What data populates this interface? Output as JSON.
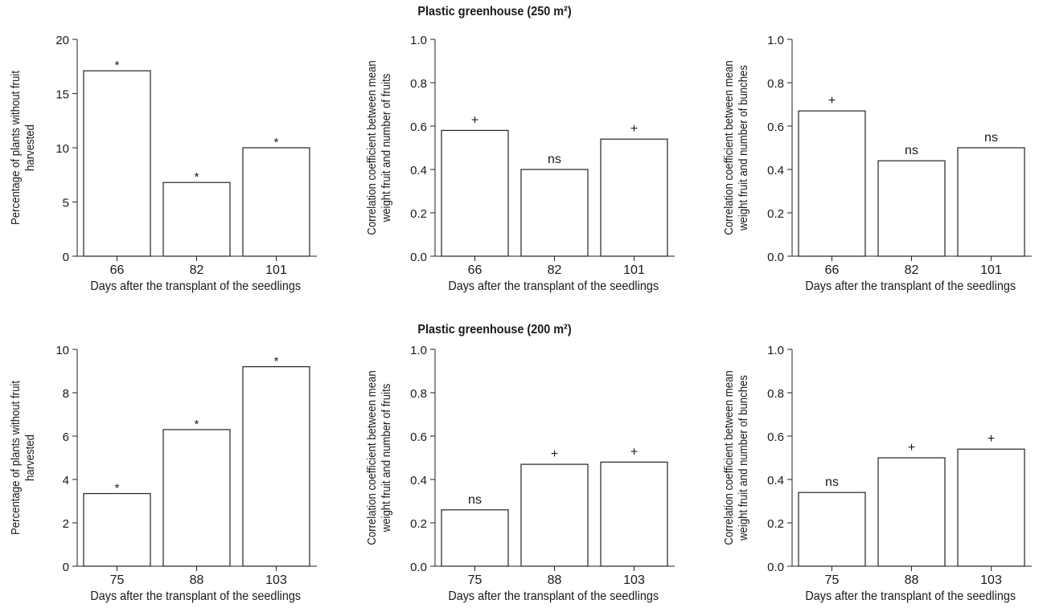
{
  "figure": {
    "row_titles": [
      "Plastic greenhouse (250 m²)",
      "Plastic greenhouse (200 m²)"
    ]
  },
  "chart_data": [
    {
      "type": "bar",
      "row": 0,
      "col": 0,
      "categories": [
        "66",
        "82",
        "101"
      ],
      "values": [
        17.1,
        6.8,
        10.0
      ],
      "annotations": [
        "*",
        "*",
        "*"
      ],
      "xlabel": "Days after the transplant of the seedlings",
      "ylabel": [
        "Percentage of plants without fruit",
        "harvested"
      ],
      "ylim": [
        0,
        20
      ],
      "yticks": [
        0,
        5,
        10,
        15,
        20
      ],
      "ytick_labels": [
        "0",
        "5",
        "10",
        "15",
        "20"
      ],
      "grid": false
    },
    {
      "type": "bar",
      "row": 0,
      "col": 1,
      "categories": [
        "66",
        "82",
        "101"
      ],
      "values": [
        0.58,
        0.4,
        0.54
      ],
      "annotations": [
        "+",
        "ns",
        "+"
      ],
      "xlabel": "Days after the transplant of the seedlings",
      "ylabel": [
        "Correlation coefficient between mean",
        "weight fruit and number of fruits"
      ],
      "ylim": [
        0,
        1
      ],
      "yticks": [
        0,
        0.2,
        0.4,
        0.6,
        0.8,
        1.0
      ],
      "ytick_labels": [
        "0.0",
        "0.2",
        "0.4",
        "0.6",
        "0.8",
        "1.0"
      ],
      "grid": false
    },
    {
      "type": "bar",
      "row": 0,
      "col": 2,
      "categories": [
        "66",
        "82",
        "101"
      ],
      "values": [
        0.67,
        0.44,
        0.5
      ],
      "annotations": [
        "+",
        "ns",
        "ns"
      ],
      "xlabel": "Days after the transplant of the seedlings",
      "ylabel": [
        "Correlation coefficient between mean",
        "weight fruit and number of bunches"
      ],
      "ylim": [
        0,
        1
      ],
      "yticks": [
        0,
        0.2,
        0.4,
        0.6,
        0.8,
        1.0
      ],
      "ytick_labels": [
        "0.0",
        "0.2",
        "0.4",
        "0.6",
        "0.8",
        "1.0"
      ],
      "grid": false
    },
    {
      "type": "bar",
      "row": 1,
      "col": 0,
      "categories": [
        "75",
        "88",
        "103"
      ],
      "values": [
        3.35,
        6.3,
        9.2
      ],
      "annotations": [
        "*",
        "*",
        "*"
      ],
      "xlabel": "Days after the transplant of the seedlings",
      "ylabel": [
        "Percentage of plants without fruit",
        "harvested"
      ],
      "ylim": [
        0,
        10
      ],
      "yticks": [
        0,
        2,
        4,
        6,
        8,
        10
      ],
      "ytick_labels": [
        "0",
        "2",
        "4",
        "6",
        "8",
        "10"
      ],
      "grid": false
    },
    {
      "type": "bar",
      "row": 1,
      "col": 1,
      "categories": [
        "75",
        "88",
        "103"
      ],
      "values": [
        0.26,
        0.47,
        0.48
      ],
      "annotations": [
        "ns",
        "+",
        "+"
      ],
      "xlabel": "Days after the transplant of the seedlings",
      "ylabel": [
        "Correlation coefficient between mean",
        "weight fruit and number of fruits"
      ],
      "ylim": [
        0,
        1
      ],
      "yticks": [
        0,
        0.2,
        0.4,
        0.6,
        0.8,
        1.0
      ],
      "ytick_labels": [
        "0.0",
        "0.2",
        "0.4",
        "0.6",
        "0.8",
        "1.0"
      ],
      "grid": false
    },
    {
      "type": "bar",
      "row": 1,
      "col": 2,
      "categories": [
        "75",
        "88",
        "103"
      ],
      "values": [
        0.34,
        0.5,
        0.54
      ],
      "annotations": [
        "ns",
        "+",
        "+"
      ],
      "xlabel": "Days after the transplant of the seedlings",
      "ylabel": [
        "Correlation coefficient between mean",
        "weight fruit and number of bunches"
      ],
      "ylim": [
        0,
        1
      ],
      "yticks": [
        0,
        0.2,
        0.4,
        0.6,
        0.8,
        1.0
      ],
      "ytick_labels": [
        "0.0",
        "0.2",
        "0.4",
        "0.6",
        "0.8",
        "1.0"
      ],
      "grid": false
    }
  ]
}
